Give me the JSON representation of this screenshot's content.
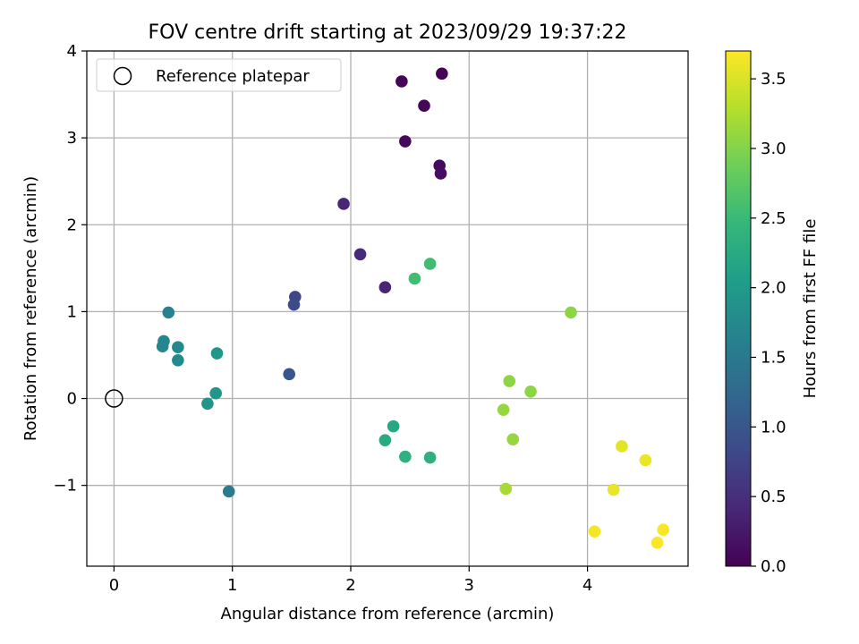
{
  "chart_data": {
    "type": "scatter",
    "title": "FOV centre drift starting at 2023/09/29 19:37:22",
    "xlabel": "Angular distance from reference (arcmin)",
    "ylabel": "Rotation from reference (arcmin)",
    "xlim": [
      -0.23,
      4.85
    ],
    "ylim": [
      -1.93,
      4.0
    ],
    "x_ticks": [
      0,
      1,
      2,
      3,
      4
    ],
    "x_tick_labels": [
      "0",
      "1",
      "2",
      "3",
      "4"
    ],
    "y_ticks": [
      -1,
      0,
      1,
      2,
      3,
      4
    ],
    "y_tick_labels": [
      "−1",
      "0",
      "1",
      "2",
      "3",
      "4"
    ],
    "grid": true,
    "legend": {
      "placement": "top-left",
      "entries": [
        {
          "label": "Reference platepar",
          "marker": "open-circle"
        }
      ]
    },
    "reference_point": {
      "x": 0,
      "y": 0
    },
    "colorbar": {
      "label": "Hours from first FF file",
      "range": [
        0.0,
        3.7
      ],
      "ticks": [
        0.0,
        0.5,
        1.0,
        1.5,
        2.0,
        2.5,
        3.0,
        3.5
      ],
      "tick_labels": [
        "0.0",
        "0.5",
        "1.0",
        "1.5",
        "2.0",
        "2.5",
        "3.0",
        "3.5"
      ],
      "colormap": "viridis"
    },
    "colormap_stops": [
      "#440154",
      "#482878",
      "#3e4989",
      "#31688e",
      "#26828e",
      "#1f9e89",
      "#35b779",
      "#6ece58",
      "#b5de2b",
      "#fde725"
    ],
    "points": [
      {
        "x": 2.77,
        "y": 3.74,
        "hours": 0.02
      },
      {
        "x": 2.43,
        "y": 3.65,
        "hours": 0.04
      },
      {
        "x": 2.62,
        "y": 3.37,
        "hours": 0.06
      },
      {
        "x": 2.46,
        "y": 2.96,
        "hours": 0.08
      },
      {
        "x": 2.75,
        "y": 2.68,
        "hours": 0.1
      },
      {
        "x": 2.76,
        "y": 2.59,
        "hours": 0.12
      },
      {
        "x": 1.94,
        "y": 2.24,
        "hours": 0.4
      },
      {
        "x": 2.08,
        "y": 1.66,
        "hours": 0.45
      },
      {
        "x": 2.29,
        "y": 1.28,
        "hours": 0.38
      },
      {
        "x": 1.53,
        "y": 1.17,
        "hours": 0.8
      },
      {
        "x": 1.52,
        "y": 1.08,
        "hours": 0.85
      },
      {
        "x": 1.48,
        "y": 0.28,
        "hours": 1.0
      },
      {
        "x": 0.97,
        "y": -1.07,
        "hours": 1.55
      },
      {
        "x": 0.46,
        "y": 0.99,
        "hours": 1.65
      },
      {
        "x": 0.42,
        "y": 0.66,
        "hours": 1.7
      },
      {
        "x": 0.41,
        "y": 0.6,
        "hours": 1.7
      },
      {
        "x": 0.54,
        "y": 0.59,
        "hours": 1.75
      },
      {
        "x": 0.54,
        "y": 0.44,
        "hours": 1.75
      },
      {
        "x": 0.87,
        "y": 0.52,
        "hours": 1.95
      },
      {
        "x": 0.86,
        "y": 0.06,
        "hours": 1.95
      },
      {
        "x": 0.79,
        "y": -0.06,
        "hours": 1.92
      },
      {
        "x": 2.36,
        "y": -0.32,
        "hours": 2.2
      },
      {
        "x": 2.29,
        "y": -0.48,
        "hours": 2.25
      },
      {
        "x": 2.46,
        "y": -0.67,
        "hours": 2.35
      },
      {
        "x": 2.67,
        "y": -0.68,
        "hours": 2.35
      },
      {
        "x": 2.54,
        "y": 1.38,
        "hours": 2.55
      },
      {
        "x": 2.67,
        "y": 1.55,
        "hours": 2.55
      },
      {
        "x": 3.34,
        "y": 0.2,
        "hours": 3.05
      },
      {
        "x": 3.52,
        "y": 0.08,
        "hours": 3.05
      },
      {
        "x": 3.29,
        "y": -0.13,
        "hours": 3.1
      },
      {
        "x": 3.37,
        "y": -0.47,
        "hours": 3.1
      },
      {
        "x": 3.31,
        "y": -1.04,
        "hours": 3.2
      },
      {
        "x": 3.86,
        "y": 0.99,
        "hours": 3.05
      },
      {
        "x": 4.29,
        "y": -0.55,
        "hours": 3.55
      },
      {
        "x": 4.49,
        "y": -0.71,
        "hours": 3.6
      },
      {
        "x": 4.22,
        "y": -1.05,
        "hours": 3.58
      },
      {
        "x": 4.06,
        "y": -1.53,
        "hours": 3.65
      },
      {
        "x": 4.64,
        "y": -1.51,
        "hours": 3.68
      },
      {
        "x": 4.59,
        "y": -1.66,
        "hours": 3.68
      }
    ]
  }
}
